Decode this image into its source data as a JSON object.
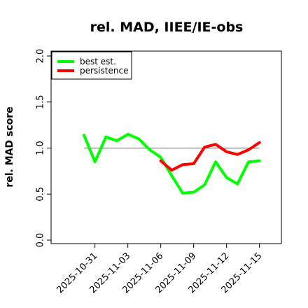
{
  "chart_data": {
    "type": "line",
    "title": "rel. MAD, IIEE/IE-obs",
    "xlabel": "",
    "ylabel": "rel. MAD score",
    "xlim": [
      "2025-10-27",
      "2025-11-17"
    ],
    "ylim": [
      0.0,
      2.0
    ],
    "x_ticks": [
      "2025-10-31",
      "2025-11-03",
      "2025-11-06",
      "2025-11-09",
      "2025-11-12",
      "2025-11-15"
    ],
    "y_ticks": [
      "0.0",
      "0.5",
      "1.0",
      "1.5",
      "2.0"
    ],
    "reference_line": 1.0,
    "legend_position": "top-left",
    "series": [
      {
        "name": "best est.",
        "color": "#00ff00",
        "x": [
          "2025-10-30",
          "2025-10-31",
          "2025-11-01",
          "2025-11-02",
          "2025-11-03",
          "2025-11-04",
          "2025-11-05",
          "2025-11-06",
          "2025-11-07",
          "2025-11-08",
          "2025-11-09",
          "2025-11-10",
          "2025-11-11",
          "2025-11-12",
          "2025-11-13",
          "2025-11-14",
          "2025-11-15"
        ],
        "values": [
          1.14,
          0.85,
          1.12,
          1.08,
          1.15,
          1.1,
          0.98,
          0.9,
          0.7,
          0.51,
          0.52,
          0.6,
          0.85,
          0.68,
          0.61,
          0.85,
          0.86
        ]
      },
      {
        "name": "persistence",
        "color": "#ff0000",
        "x": [
          "2025-11-06",
          "2025-11-07",
          "2025-11-08",
          "2025-11-09",
          "2025-11-10",
          "2025-11-11",
          "2025-11-12",
          "2025-11-13",
          "2025-11-14",
          "2025-11-15"
        ],
        "values": [
          0.86,
          0.76,
          0.82,
          0.83,
          1.01,
          1.04,
          0.96,
          0.93,
          0.98,
          1.06
        ]
      }
    ]
  }
}
